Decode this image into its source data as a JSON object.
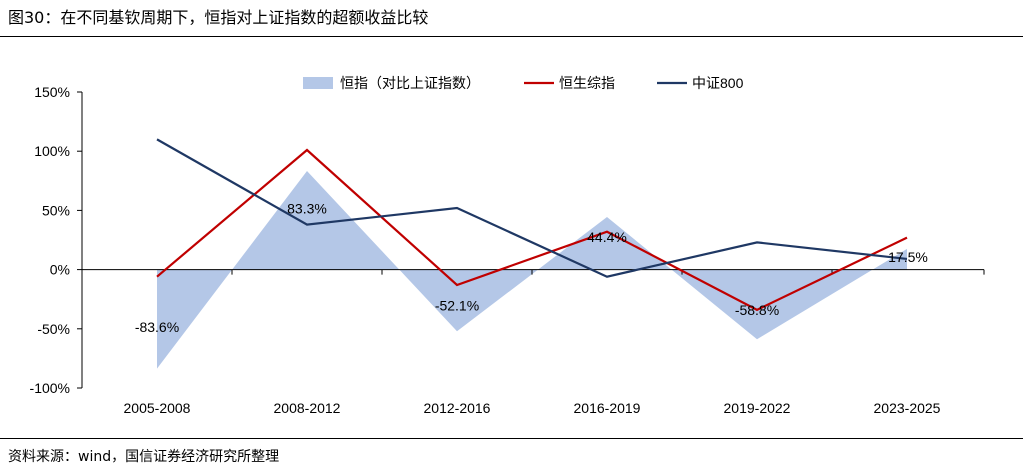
{
  "header": {
    "title": "图30：在不同基钦周期下，恒指对上证指数的超额收益比较"
  },
  "footer": {
    "source": "资料来源：wind，国信证券经济研究所整理"
  },
  "chart_data": {
    "type": "area",
    "categories": [
      "2005-2008",
      "2008-2012",
      "2012-2016",
      "2016-2019",
      "2019-2022",
      "2023-2025"
    ],
    "ylim": [
      -100,
      150
    ],
    "yticks": [
      -100,
      -50,
      0,
      50,
      100,
      150
    ],
    "ytick_labels": [
      "-100%",
      "-50%",
      "0%",
      "50%",
      "100%",
      "150%"
    ],
    "legend_position": "top",
    "series": [
      {
        "name": "恒指（对比上证指数）",
        "kind": "area",
        "color": "#b4c7e7",
        "values": [
          -83.6,
          83.3,
          -52.1,
          44.4,
          -58.8,
          17.5
        ],
        "data_labels": [
          "-83.6%",
          "83.3%",
          "-52.1%",
          "44.4%",
          "-58.8%",
          "17.5%"
        ]
      },
      {
        "name": "恒生综指",
        "kind": "line",
        "color": "#c00000",
        "values": [
          -6,
          101,
          -13,
          32,
          -34,
          27
        ]
      },
      {
        "name": "中证800",
        "kind": "line",
        "color": "#1f3864",
        "values": [
          110,
          38,
          52,
          -6,
          23,
          9
        ]
      }
    ]
  }
}
